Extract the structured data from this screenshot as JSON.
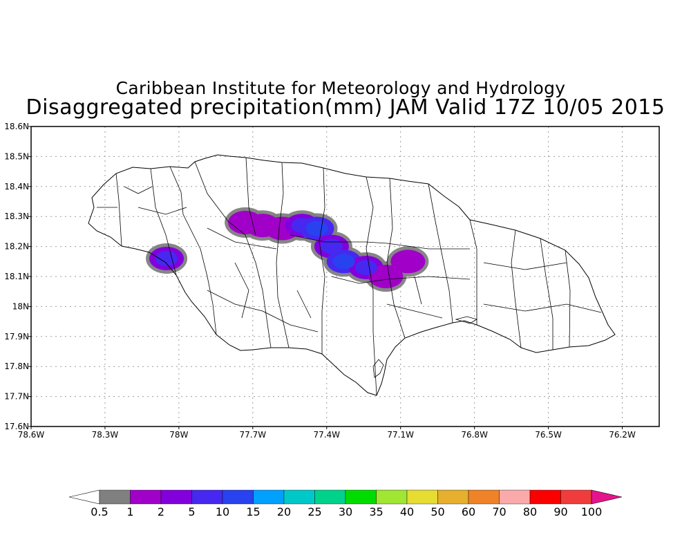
{
  "title": {
    "line1": "Caribbean Institute for Meteorology and Hydrology",
    "line2": "Disaggregated precipitation(mm) JAM Valid 17Z 10/05 2015"
  },
  "axes": {
    "lon_min": -78.6,
    "lon_max": -76.05,
    "lat_min": 17.6,
    "lat_max": 18.6,
    "x_ticks": [
      {
        "value": -78.6,
        "label": "78.6W"
      },
      {
        "value": -78.3,
        "label": "78.3W"
      },
      {
        "value": -78.0,
        "label": "78W"
      },
      {
        "value": -77.7,
        "label": "77.7W"
      },
      {
        "value": -77.4,
        "label": "77.4W"
      },
      {
        "value": -77.1,
        "label": "77.1W"
      },
      {
        "value": -76.8,
        "label": "76.8W"
      },
      {
        "value": -76.5,
        "label": "76.5W"
      },
      {
        "value": -76.2,
        "label": "76.2W"
      }
    ],
    "y_ticks": [
      {
        "value": 17.6,
        "label": "17.6N"
      },
      {
        "value": 17.7,
        "label": "17.7N"
      },
      {
        "value": 17.8,
        "label": "17.8N"
      },
      {
        "value": 17.9,
        "label": "17.9N"
      },
      {
        "value": 18.0,
        "label": "18N"
      },
      {
        "value": 18.1,
        "label": "18.1N"
      },
      {
        "value": 18.2,
        "label": "18.2N"
      },
      {
        "value": 18.3,
        "label": "18.3N"
      },
      {
        "value": 18.4,
        "label": "18.4N"
      },
      {
        "value": 18.5,
        "label": "18.5N"
      },
      {
        "value": 18.6,
        "label": "18.6N"
      }
    ],
    "grid": true
  },
  "colorbar": {
    "labels": [
      "0.5",
      "1",
      "2",
      "5",
      "10",
      "15",
      "20",
      "25",
      "30",
      "35",
      "40",
      "50",
      "60",
      "70",
      "80",
      "90",
      "100"
    ],
    "colors": [
      "#808080",
      "#a000c8",
      "#8200dc",
      "#4628f0",
      "#2842f0",
      "#00a0ff",
      "#00c8c8",
      "#00d28c",
      "#00dc00",
      "#a0e632",
      "#e6dc32",
      "#e6af2d",
      "#f08228",
      "#faaaaa",
      "#fa0000",
      "#f03c3c"
    ],
    "low_arrow_color": "#ffffff",
    "high_arrow_color": "#e6148c"
  },
  "chart_data": {
    "type": "heatmap",
    "variable": "precipitation (mm)",
    "cells": [
      {
        "lon": -77.73,
        "lat": 18.28,
        "value": 1
      },
      {
        "lon": -77.66,
        "lat": 18.27,
        "value": 2
      },
      {
        "lon": -77.58,
        "lat": 18.26,
        "value": 2
      },
      {
        "lon": -77.5,
        "lat": 18.27,
        "value": 5
      },
      {
        "lon": -77.44,
        "lat": 18.26,
        "value": 10
      },
      {
        "lon": -77.38,
        "lat": 18.2,
        "value": 5
      },
      {
        "lon": -77.33,
        "lat": 18.15,
        "value": 10
      },
      {
        "lon": -77.24,
        "lat": 18.13,
        "value": 5
      },
      {
        "lon": -77.16,
        "lat": 18.1,
        "value": 2
      },
      {
        "lon": -77.07,
        "lat": 18.15,
        "value": 2
      },
      {
        "lon": -78.05,
        "lat": 18.16,
        "value": 5
      }
    ]
  }
}
